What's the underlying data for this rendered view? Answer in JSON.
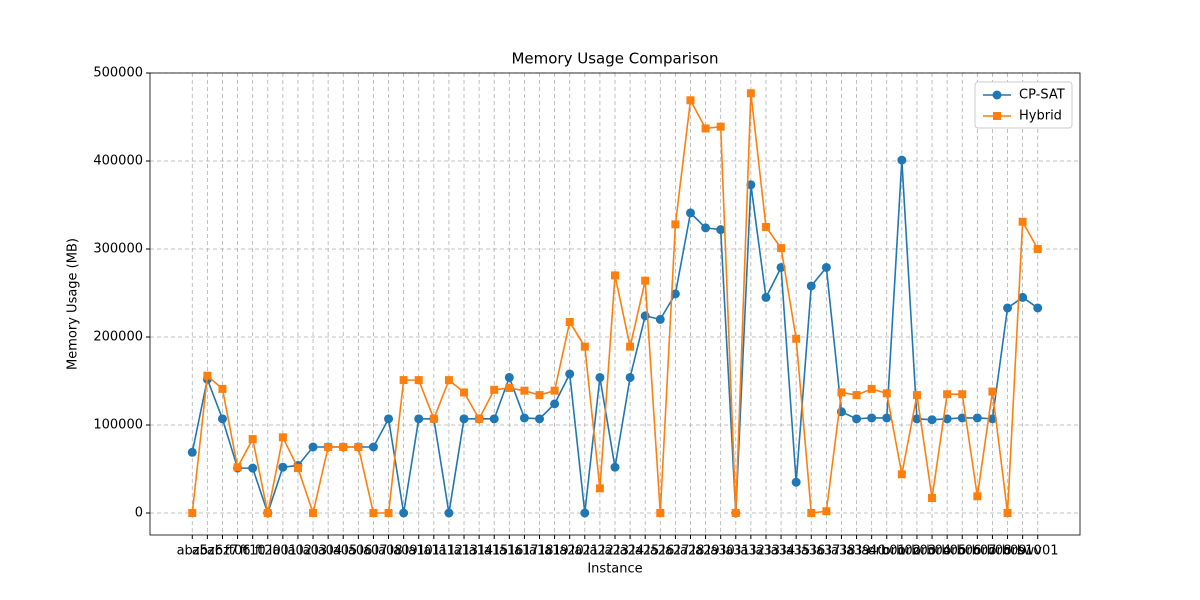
{
  "chart_data": {
    "type": "line",
    "title": "Memory Usage Comparison",
    "xlabel": "Instance",
    "ylabel": "Memory Usage (MB)",
    "categories": [
      "abz5",
      "abz6",
      "abz7",
      "ft06",
      "ft10",
      "ft20",
      "la01",
      "la02",
      "la03",
      "la04",
      "la05",
      "la06",
      "la07",
      "la08",
      "la09",
      "la10",
      "la11",
      "la12",
      "la13",
      "la14",
      "la15",
      "la16",
      "la17",
      "la18",
      "la19",
      "la20",
      "la21",
      "la22",
      "la23",
      "la24",
      "la25",
      "la26",
      "la27",
      "la28",
      "la29",
      "la30",
      "la31",
      "la32",
      "la33",
      "la34",
      "la35",
      "la36",
      "la37",
      "la38",
      "la39",
      "la40",
      "orb01",
      "orb02",
      "orb03",
      "orb04",
      "orb05",
      "orb06",
      "orb07",
      "orb08",
      "orb09",
      "orb10",
      "swv01"
    ],
    "series": [
      {
        "name": "CP-SAT",
        "color": "#1f77b4",
        "marker": "circle",
        "values": [
          69000,
          152000,
          107000,
          51000,
          51000,
          0,
          52000,
          54000,
          75000,
          75000,
          75000,
          75000,
          75000,
          107000,
          0,
          107000,
          107000,
          0,
          107000,
          107000,
          107000,
          154000,
          108000,
          107000,
          124000,
          158000,
          0,
          154000,
          52000,
          154000,
          224000,
          220000,
          249000,
          341000,
          324000,
          322000,
          0,
          373000,
          245000,
          279000,
          35000,
          258000,
          279000,
          115000,
          107000,
          108000,
          108000,
          401000,
          107000,
          106000,
          107000,
          108000,
          108000,
          107000,
          233000,
          245000,
          233000
        ]
      },
      {
        "name": "Hybrid",
        "color": "#ff7f0e",
        "marker": "square",
        "values": [
          0,
          156000,
          141000,
          52000,
          84000,
          0,
          86000,
          51000,
          0,
          75000,
          75000,
          75000,
          0,
          0,
          151000,
          151000,
          107000,
          151000,
          137000,
          107000,
          140000,
          142000,
          139000,
          134000,
          139000,
          217000,
          189000,
          28000,
          270000,
          189000,
          264000,
          0,
          328000,
          469000,
          437000,
          439000,
          0,
          477000,
          325000,
          301000,
          198000,
          0,
          2000,
          137000,
          134000,
          141000,
          136000,
          44000,
          134000,
          17000,
          135000,
          135000,
          19000,
          138000,
          0,
          331000,
          300000
        ]
      }
    ],
    "ylim": [
      -25000,
      500000
    ],
    "yticks": [
      0,
      100000,
      200000,
      300000,
      400000,
      500000
    ],
    "grid": true,
    "legend": "upper right"
  }
}
